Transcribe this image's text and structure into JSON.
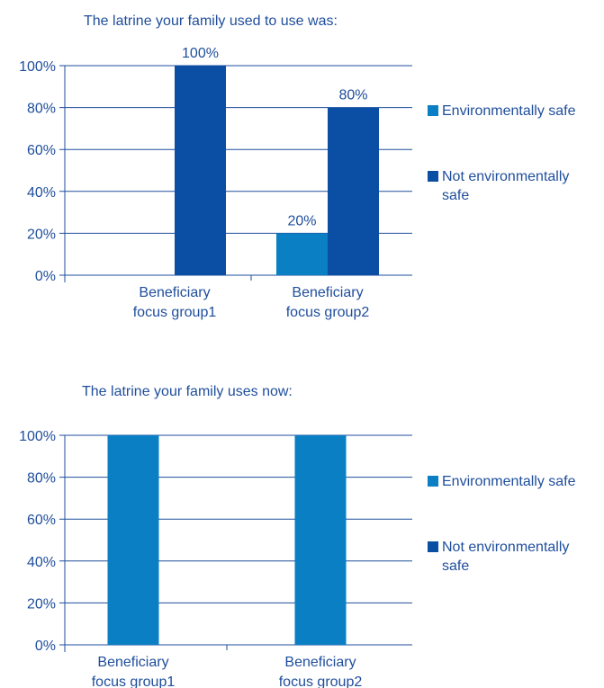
{
  "chart_data": [
    {
      "type": "bar",
      "title": "The latrine your family used to use was:",
      "categories": [
        "Beneficiary focus group1",
        "Beneficiary focus group2"
      ],
      "category_lines": [
        [
          "Beneficiary",
          "focus group1"
        ],
        [
          "Beneficiary",
          "focus group2"
        ]
      ],
      "series": [
        {
          "name": "Environmentally safe",
          "values": [
            0,
            20
          ],
          "color": "#0a7fc4",
          "labels": [
            null,
            "20%"
          ]
        },
        {
          "name": "Not environmentally safe",
          "values": [
            100,
            80
          ],
          "color": "#0a4fa3",
          "labels": [
            "100%",
            "80%"
          ]
        }
      ],
      "legend_lines": [
        [
          "Environmentally safe"
        ],
        [
          "Not environmentally",
          "safe"
        ]
      ],
      "ylim": [
        0,
        100
      ],
      "yticks": [
        "0%",
        "20%",
        "40%",
        "60%",
        "80%",
        "100%"
      ],
      "grid": true,
      "legend_position": "right"
    },
    {
      "type": "bar",
      "title": "The latrine your family uses now:",
      "categories": [
        "Beneficiary focus group1",
        "Beneficiary focus group2"
      ],
      "category_lines": [
        [
          "Beneficiary",
          "focus group1"
        ],
        [
          "Beneficiary",
          "focus group2"
        ]
      ],
      "series": [
        {
          "name": "Environmentally safe",
          "values": [
            100,
            100
          ],
          "color": "#0a7fc4",
          "labels": [
            null,
            null
          ]
        },
        {
          "name": "Not environmentally safe",
          "values": [
            0,
            0
          ],
          "color": "#0a4fa3",
          "labels": [
            null,
            null
          ]
        }
      ],
      "legend_lines": [
        [
          "Environmentally safe"
        ],
        [
          "Not environmentally",
          "safe"
        ]
      ],
      "ylim": [
        0,
        100
      ],
      "yticks": [
        "0%",
        "20%",
        "40%",
        "60%",
        "80%",
        "100%"
      ],
      "grid": true,
      "legend_position": "right"
    }
  ]
}
